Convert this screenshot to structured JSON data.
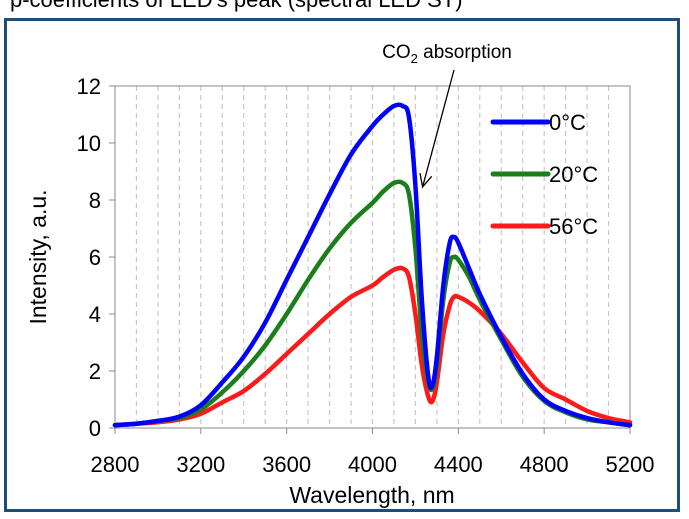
{
  "caption": "p-coefficients of LED's peak (spectral LED ST)",
  "chart_data": {
    "type": "line",
    "xlabel": "Wavelength, nm",
    "ylabel": "Intensity, a.u.",
    "xlim": [
      2800,
      5200
    ],
    "ylim": [
      0,
      12
    ],
    "xticks": [
      2800,
      3200,
      3600,
      4000,
      4400,
      4800,
      5200
    ],
    "yticks": [
      0,
      2,
      4,
      6,
      8,
      10,
      12
    ],
    "grid": "vertical dashed",
    "legend_position": "top-right",
    "annotation": {
      "text_prefix": "CO",
      "text_sub": "2",
      "text_suffix": " absorption",
      "arrow_target_x": 4280,
      "arrow_target_y": 8.6
    },
    "colors": {
      "frame": "#1f4e79",
      "0C": "#0000ff",
      "20C": "#1a7f1a",
      "56C": "#ff1a1a"
    },
    "series": [
      {
        "name": "0°C",
        "color": "#0000ff",
        "x": [
          2800,
          2900,
          3000,
          3100,
          3200,
          3300,
          3400,
          3500,
          3600,
          3700,
          3800,
          3900,
          4000,
          4050,
          4100,
          4140,
          4170,
          4200,
          4230,
          4260,
          4280,
          4300,
          4330,
          4360,
          4380,
          4400,
          4450,
          4500,
          4600,
          4700,
          4800,
          4900,
          5000,
          5100,
          5200
        ],
        "y": [
          0.1,
          0.15,
          0.25,
          0.4,
          0.8,
          1.6,
          2.5,
          3.7,
          5.2,
          6.7,
          8.2,
          9.6,
          10.6,
          11.0,
          11.3,
          11.3,
          10.9,
          8.5,
          4.5,
          1.8,
          1.5,
          2.5,
          5.0,
          6.5,
          6.7,
          6.5,
          5.6,
          4.7,
          3.2,
          1.9,
          1.0,
          0.6,
          0.35,
          0.2,
          0.1
        ]
      },
      {
        "name": "20°C",
        "color": "#1a7f1a",
        "x": [
          2800,
          2900,
          3000,
          3100,
          3200,
          3300,
          3400,
          3500,
          3600,
          3700,
          3800,
          3900,
          4000,
          4050,
          4100,
          4140,
          4170,
          4200,
          4230,
          4260,
          4280,
          4300,
          4330,
          4360,
          4380,
          4400,
          4450,
          4500,
          4600,
          4700,
          4800,
          4900,
          5000,
          5100,
          5200
        ],
        "y": [
          0.1,
          0.15,
          0.25,
          0.35,
          0.65,
          1.25,
          2.0,
          2.9,
          4.0,
          5.2,
          6.3,
          7.2,
          7.9,
          8.3,
          8.6,
          8.6,
          8.2,
          6.3,
          3.3,
          1.6,
          1.4,
          2.2,
          4.5,
          5.8,
          6.0,
          5.9,
          5.3,
          4.5,
          3.1,
          1.8,
          0.95,
          0.55,
          0.3,
          0.2,
          0.1
        ]
      },
      {
        "name": "56°C",
        "color": "#ff1a1a",
        "x": [
          2800,
          2900,
          3000,
          3100,
          3200,
          3300,
          3400,
          3500,
          3600,
          3700,
          3800,
          3900,
          4000,
          4050,
          4100,
          4140,
          4170,
          4200,
          4230,
          4260,
          4280,
          4300,
          4330,
          4360,
          4380,
          4400,
          4450,
          4500,
          4600,
          4700,
          4800,
          4900,
          5000,
          5100,
          5200
        ],
        "y": [
          0.1,
          0.15,
          0.2,
          0.3,
          0.5,
          0.9,
          1.3,
          1.9,
          2.6,
          3.3,
          4.0,
          4.6,
          5.0,
          5.3,
          5.55,
          5.6,
          5.3,
          4.0,
          2.2,
          1.1,
          0.95,
          1.6,
          3.3,
          4.3,
          4.6,
          4.6,
          4.4,
          4.1,
          3.3,
          2.3,
          1.4,
          1.0,
          0.6,
          0.35,
          0.2
        ]
      }
    ]
  }
}
